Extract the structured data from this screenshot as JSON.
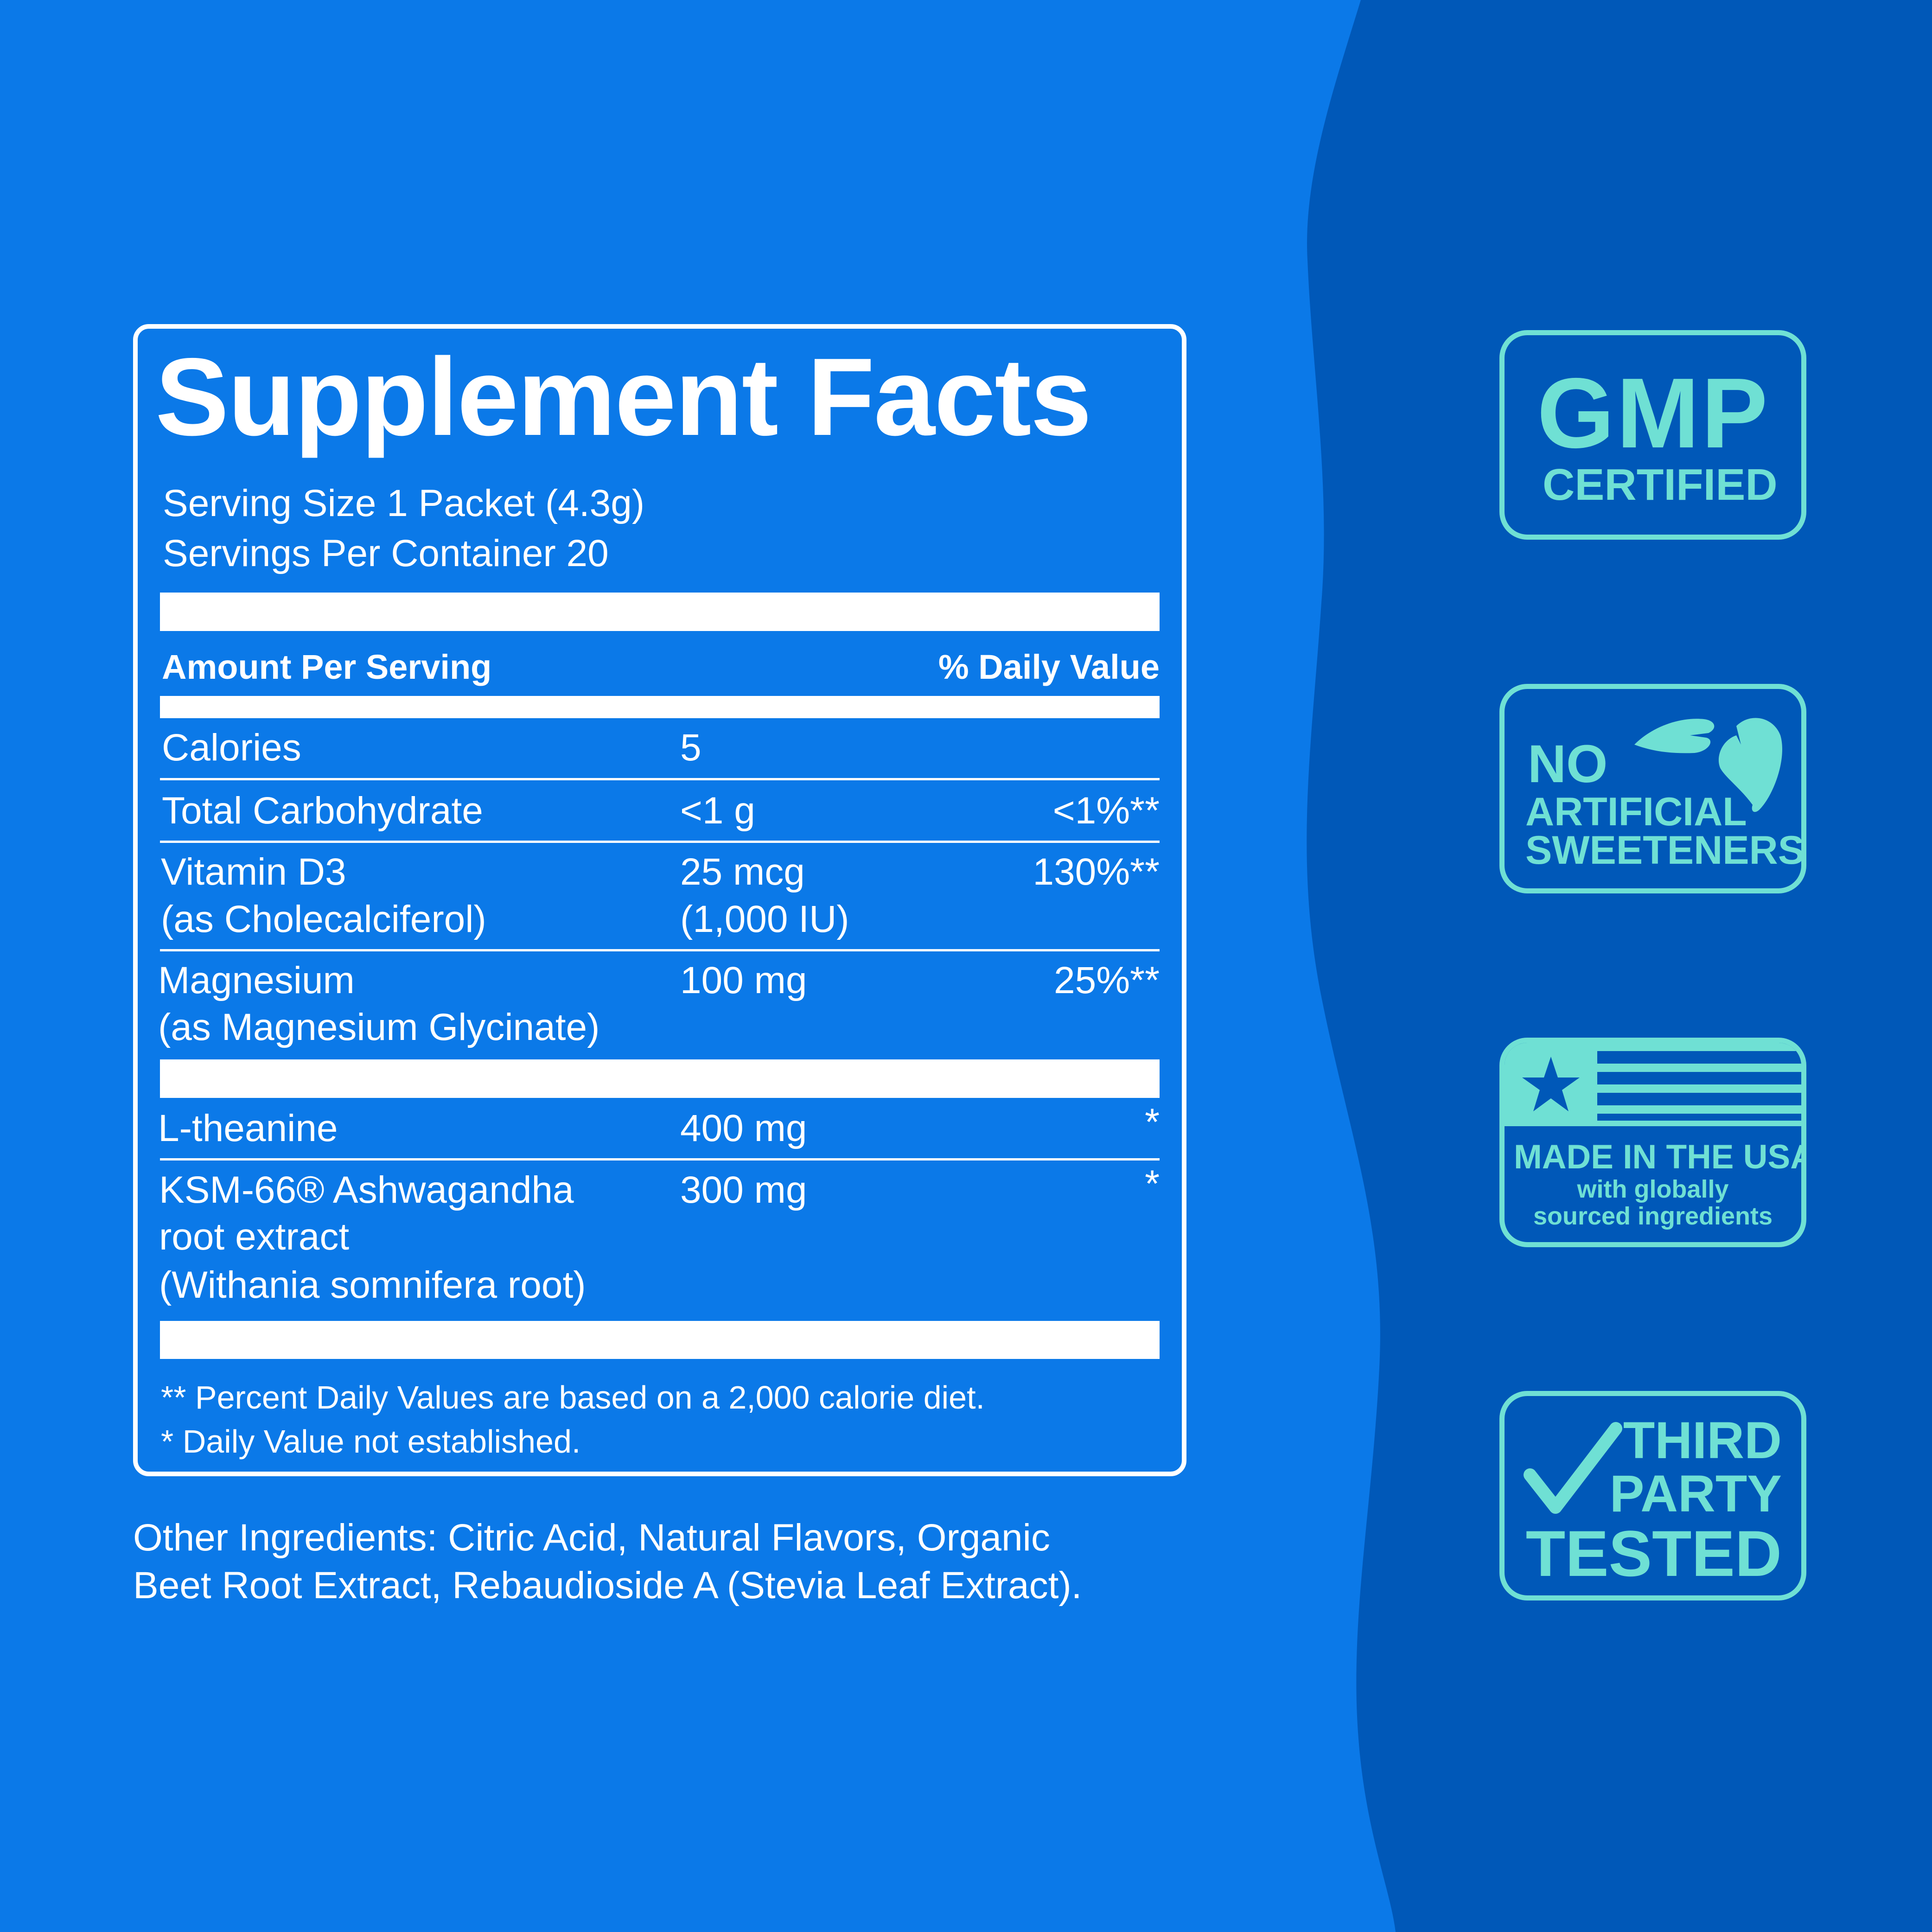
{
  "colors": {
    "background_left": "#0b79e8",
    "background_right": "#0058b8",
    "badge": "#6fe0d4",
    "text": "#ffffff"
  },
  "facts": {
    "title": "Supplement Facts",
    "serving_size": "Serving Size 1 Packet (4.3g)",
    "servings_per_container": "Servings Per Container 20",
    "header_amount": "Amount Per Serving",
    "header_dv": "% Daily Value",
    "rows": [
      {
        "name": [
          "Calories"
        ],
        "amount": [
          "5"
        ],
        "dv": ""
      },
      {
        "name": [
          "Total Carbohydrate"
        ],
        "amount": [
          "<1 g"
        ],
        "dv": "<1%**"
      },
      {
        "name": [
          "Vitamin D3",
          "(as Cholecalciferol)"
        ],
        "amount": [
          "25 mcg",
          "(1,000 IU)"
        ],
        "dv": "130%**"
      },
      {
        "name": [
          "Magnesium",
          "(as Magnesium Glycinate)"
        ],
        "amount": [
          "100 mg"
        ],
        "dv": "25%**"
      },
      {
        "name": [
          "L-theanine"
        ],
        "amount": [
          "400 mg"
        ],
        "dv": "*"
      },
      {
        "name": [
          "KSM-66® Ashwagandha",
          "root extract",
          "(Withania somnifera root)"
        ],
        "amount": [
          "300 mg"
        ],
        "dv": "*"
      }
    ],
    "footnote1": "** Percent Daily Values are based on a 2,000 calorie diet.",
    "footnote2": "* Daily Value not established."
  },
  "other_ingredients": [
    "Other Ingredients: Citric Acid, Natural Flavors, Organic",
    "Beet Root Extract, Rebaudioside A (Stevia Leaf Extract)."
  ],
  "badges": {
    "gmp": {
      "line1": "GMP",
      "line2": "CERTIFIED"
    },
    "sweeteners": {
      "line1": "NO",
      "line2": "ARTIFICIAL",
      "line3": "SWEETENERS",
      "icon": "leaf-icon"
    },
    "usa": {
      "line1": "MADE IN THE USA",
      "line2": "with globally",
      "line3": "sourced ingredients",
      "icon": "flag-icon"
    },
    "tested": {
      "line1": "THIRD",
      "line2": "PARTY",
      "line3": "TESTED",
      "icon": "checkmark-icon"
    }
  }
}
